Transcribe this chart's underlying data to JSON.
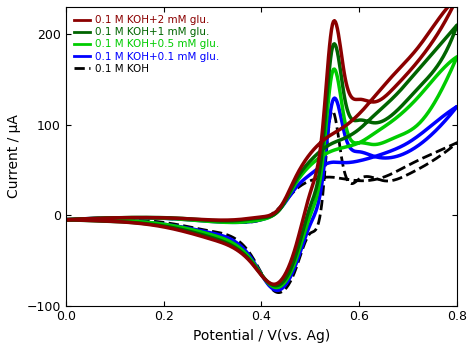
{
  "title": "",
  "xlabel": "Potential / V(vs. Ag)",
  "ylabel": "Current / μA",
  "xlim": [
    0.0,
    0.8
  ],
  "ylim": [
    -100,
    230
  ],
  "yticks": [
    -100,
    0,
    100,
    200
  ],
  "xticks": [
    0.0,
    0.2,
    0.4,
    0.6,
    0.8
  ],
  "legend_labels": [
    "0.1 M KOH+2 mM glu.",
    "0.1 M KOH+1 mM glu.",
    "0.1 M KOH+0.5 mM glu.",
    "0.1 M KOH+0.1 mM glu.",
    "0.1 M KOH"
  ],
  "legend_colors": [
    "#8b0000",
    "#006400",
    "#00cc00",
    "#0000ff",
    "#000000"
  ],
  "line_styles": [
    "-",
    "-",
    "-",
    "-",
    "--"
  ],
  "line_widths": [
    2.5,
    2.5,
    2.5,
    2.5,
    2.0
  ],
  "background_color": "#ffffff"
}
